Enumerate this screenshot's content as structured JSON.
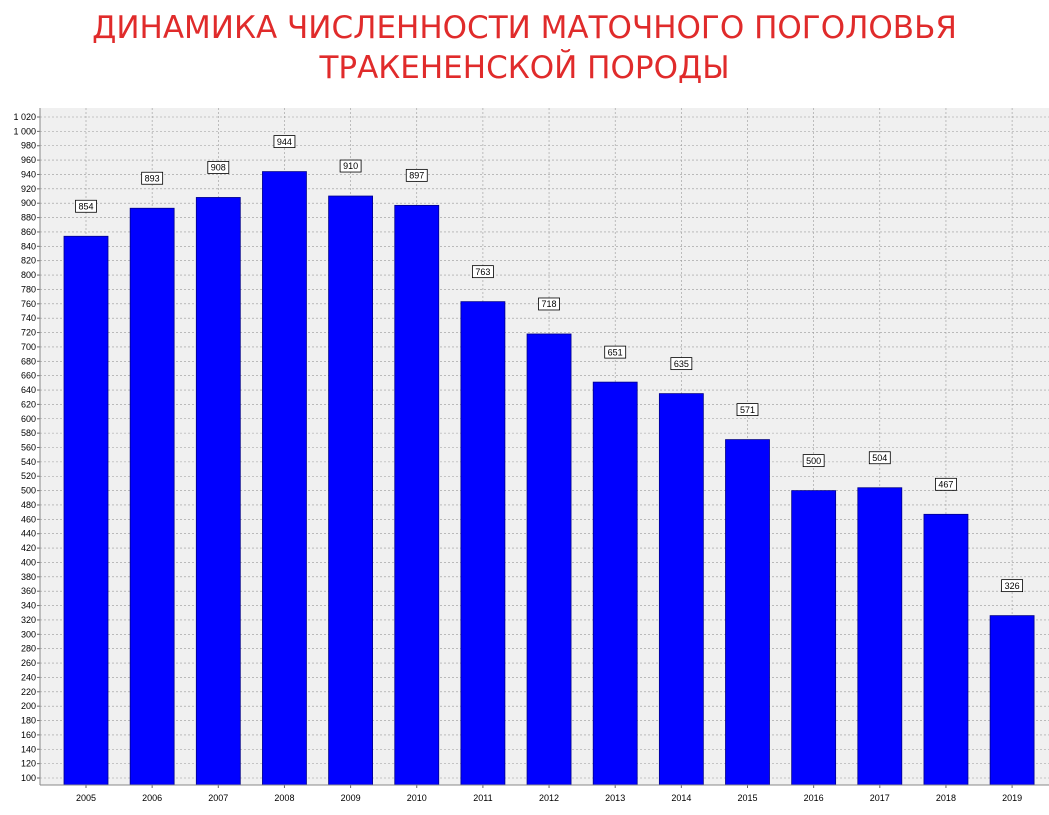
{
  "title_line1": "ДИНАМИКА ЧИСЛЕННОСТИ МАТОЧНОГО ПОГОЛОВЬЯ",
  "title_line2": "ТРАКЕНЕНСКОЙ ПОРОДЫ",
  "colors": {
    "title": "#e02b2b",
    "bar": "#0000ff",
    "plot_bg": "#f0f0f0",
    "grid": "#999999"
  },
  "chart_data": {
    "type": "bar",
    "categories": [
      "2005",
      "2006",
      "2007",
      "2008",
      "2009",
      "2010",
      "2011",
      "2012",
      "2013",
      "2014",
      "2015",
      "2016",
      "2017",
      "2018",
      "2019"
    ],
    "values": [
      854,
      893,
      908,
      944,
      910,
      897,
      763,
      718,
      651,
      635,
      571,
      500,
      504,
      467,
      326
    ],
    "title": "ДИНАМИКА ЧИСЛЕННОСТИ МАТОЧНОГО ПОГОЛОВЬЯ ТРАКЕНЕНСКОЙ ПОРОДЫ",
    "xlabel": "",
    "ylabel": "",
    "ylim": [
      90,
      1020
    ],
    "yticks": [
      "1 020",
      "1 000",
      "980",
      "960",
      "940",
      "920",
      "900",
      "880",
      "860",
      "840",
      "820",
      "800",
      "780",
      "760",
      "740",
      "720",
      "700",
      "680",
      "660",
      "640",
      "620",
      "600",
      "580",
      "560",
      "540",
      "520",
      "500",
      "480",
      "460",
      "440",
      "420",
      "400",
      "380",
      "360",
      "340",
      "320",
      "300",
      "280",
      "260",
      "240",
      "220",
      "200",
      "180",
      "160",
      "140",
      "120",
      "100"
    ],
    "grid": true,
    "data_labels": true
  }
}
